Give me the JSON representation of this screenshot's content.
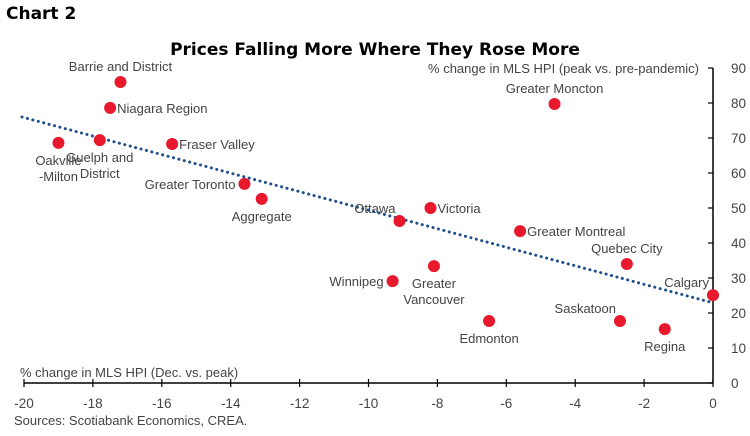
{
  "header": {
    "chart_number": "Chart 2"
  },
  "footer": {
    "source": "Sources: Scotiabank Economics, CREA."
  },
  "chart_data": {
    "type": "scatter",
    "title": "Prices Falling More Where They Rose More",
    "xlabel": "% change in MLS HPI (Dec. vs. peak)",
    "ylabel": "% change in MLS HPI (peak vs. pre-pandemic)",
    "xlim": [
      -20,
      0
    ],
    "ylim": [
      0,
      90
    ],
    "xticks": [
      -20,
      -18,
      -16,
      -14,
      -12,
      -10,
      -8,
      -6,
      -4,
      -2,
      0
    ],
    "yticks": [
      0,
      10,
      20,
      30,
      40,
      50,
      60,
      70,
      80,
      90
    ],
    "grid": false,
    "colors": {
      "points": "#e8192c",
      "trend": "#1f4e8c",
      "axis": "#000000",
      "text": "#444444"
    },
    "trendline": {
      "style": "dotted",
      "x": [
        -20,
        0
      ],
      "y": [
        76.0,
        22.9
      ]
    },
    "points": [
      {
        "name": "Barrie and District",
        "x": -17.2,
        "y": 86.0,
        "label_lines": [
          "Barrie and District"
        ],
        "anchor": "above"
      },
      {
        "name": "Niagara Region",
        "x": -17.5,
        "y": 78.6,
        "label_lines": [
          "Niagara Region"
        ],
        "anchor": "right"
      },
      {
        "name": "Oakville-Milton",
        "x": -19.0,
        "y": 68.6,
        "label_lines": [
          "Oakville",
          "-Milton"
        ],
        "anchor": "below"
      },
      {
        "name": "Guelph and District",
        "x": -17.8,
        "y": 69.4,
        "label_lines": [
          "Guelph and",
          "District"
        ],
        "anchor": "below"
      },
      {
        "name": "Fraser Valley",
        "x": -15.7,
        "y": 68.3,
        "label_lines": [
          "Fraser Valley"
        ],
        "anchor": "right"
      },
      {
        "name": "Greater Moncton",
        "x": -4.6,
        "y": 79.7,
        "label_lines": [
          "Greater Moncton"
        ],
        "anchor": "above"
      },
      {
        "name": "Greater Toronto",
        "x": -13.6,
        "y": 56.9,
        "label_lines": [
          "Greater Toronto"
        ],
        "anchor": "left"
      },
      {
        "name": "Aggregate",
        "x": -13.1,
        "y": 52.6,
        "label_lines": [
          "Aggregate"
        ],
        "anchor": "below"
      },
      {
        "name": "Ottawa",
        "x": -9.1,
        "y": 46.3,
        "label_lines": [
          "Ottawa"
        ],
        "anchor": "above-left"
      },
      {
        "name": "Victoria",
        "x": -8.2,
        "y": 50.0,
        "label_lines": [
          "Victoria"
        ],
        "anchor": "right"
      },
      {
        "name": "Greater Montreal",
        "x": -5.6,
        "y": 43.4,
        "label_lines": [
          "Greater Montreal"
        ],
        "anchor": "right"
      },
      {
        "name": "Quebec City",
        "x": -2.5,
        "y": 34.0,
        "label_lines": [
          "Quebec City"
        ],
        "anchor": "above"
      },
      {
        "name": "Calgary",
        "x": 0.0,
        "y": 25.1,
        "label_lines": [
          "Calgary"
        ],
        "anchor": "above-left"
      },
      {
        "name": "Winnipeg",
        "x": -9.3,
        "y": 29.1,
        "label_lines": [
          "Winnipeg"
        ],
        "anchor": "left"
      },
      {
        "name": "Greater Vancouver",
        "x": -8.1,
        "y": 33.4,
        "label_lines": [
          "Greater",
          "Vancouver"
        ],
        "anchor": "below"
      },
      {
        "name": "Edmonton",
        "x": -6.5,
        "y": 17.7,
        "label_lines": [
          "Edmonton"
        ],
        "anchor": "below"
      },
      {
        "name": "Saskatoon",
        "x": -2.7,
        "y": 17.7,
        "label_lines": [
          "Saskatoon"
        ],
        "anchor": "above-left"
      },
      {
        "name": "Regina",
        "x": -1.4,
        "y": 15.4,
        "label_lines": [
          "Regina"
        ],
        "anchor": "below"
      }
    ]
  }
}
